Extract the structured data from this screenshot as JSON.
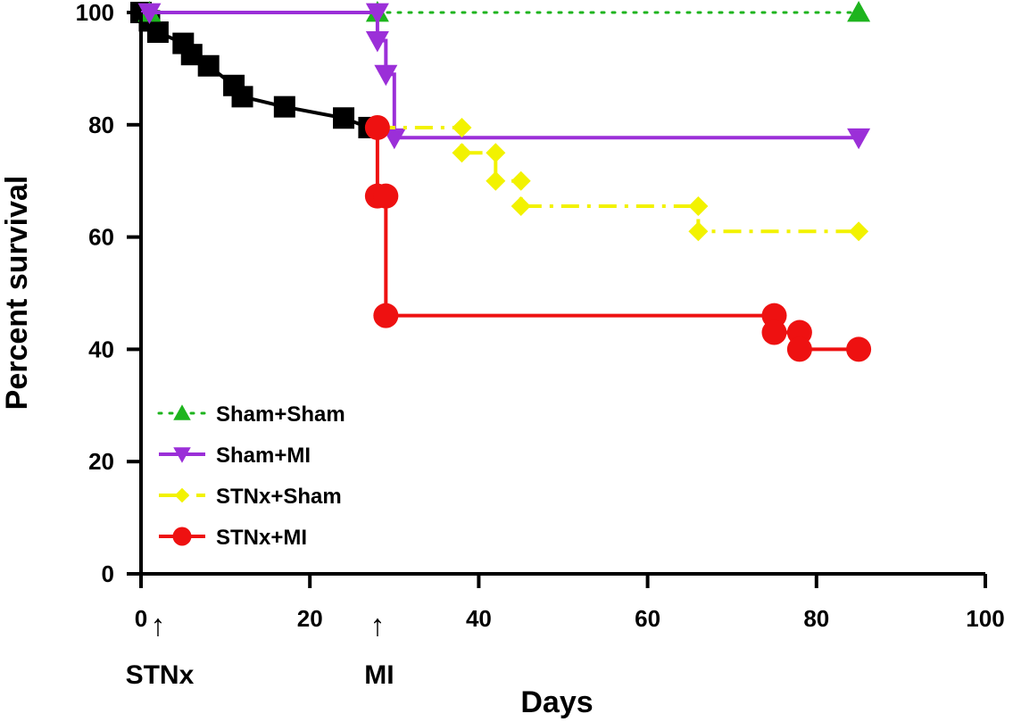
{
  "chart_data": {
    "type": "line",
    "xlabel": "Days",
    "ylabel": "Percent survival",
    "xlim": [
      0,
      100
    ],
    "ylim": [
      0,
      100
    ],
    "xticks": [
      0,
      20,
      40,
      60,
      80,
      100
    ],
    "yticks": [
      0,
      20,
      40,
      60,
      80,
      100
    ],
    "grid": false,
    "legend_position": "lower-left",
    "annotations": [
      {
        "text": "STNx",
        "arrow": "↑",
        "x": 2
      },
      {
        "text": "MI",
        "arrow": "↑",
        "x": 28
      }
    ],
    "series": [
      {
        "name": "",
        "color": "#000000",
        "marker": "square",
        "line": "solid",
        "points": [
          [
            0,
            100
          ],
          [
            1,
            98.5
          ],
          [
            2,
            96.5
          ],
          [
            5,
            94.5
          ],
          [
            6,
            92.5
          ],
          [
            8,
            90.5
          ],
          [
            11,
            87
          ],
          [
            12,
            85
          ],
          [
            17,
            83.2
          ],
          [
            24,
            81.2
          ],
          [
            27,
            79.5
          ]
        ],
        "step_path": [
          [
            0,
            100
          ],
          [
            1,
            98.5
          ],
          [
            2,
            96.5
          ],
          [
            5,
            94.5
          ],
          [
            6,
            92.5
          ],
          [
            8,
            90.5
          ],
          [
            11,
            87
          ],
          [
            12,
            85
          ],
          [
            17,
            83.2
          ],
          [
            24,
            81.2
          ],
          [
            27,
            79.5
          ],
          [
            28,
            79.5
          ]
        ]
      },
      {
        "name": "Sham+Sham",
        "color": "#1EB41E",
        "marker": "triangle-up",
        "line": "dotted",
        "points": [
          [
            1,
            100
          ],
          [
            28,
            100
          ],
          [
            85,
            100
          ]
        ],
        "step_path": [
          [
            0,
            100
          ],
          [
            85,
            100
          ]
        ]
      },
      {
        "name": "Sham+MI",
        "color": "#9B2FD8",
        "marker": "triangle-down",
        "line": "solid",
        "points": [
          [
            1,
            100
          ],
          [
            28,
            100
          ],
          [
            28,
            95
          ],
          [
            29,
            89
          ],
          [
            30,
            77.7
          ],
          [
            85,
            77.7
          ]
        ],
        "step_path": [
          [
            0,
            100
          ],
          [
            28,
            100
          ],
          [
            28,
            95
          ],
          [
            29,
            95
          ],
          [
            29,
            89
          ],
          [
            30,
            89
          ],
          [
            30,
            77.7
          ],
          [
            85,
            77.7
          ]
        ]
      },
      {
        "name": "STNx+Sham",
        "color": "#F2F200",
        "marker": "diamond",
        "line": "dash-dot",
        "points": [
          [
            38,
            79.5
          ],
          [
            38,
            75
          ],
          [
            42,
            75
          ],
          [
            42,
            70
          ],
          [
            45,
            70
          ],
          [
            45,
            65.5
          ],
          [
            66,
            65.5
          ],
          [
            66,
            61
          ],
          [
            85,
            61
          ]
        ],
        "step_path": [
          [
            28,
            79.5
          ],
          [
            38,
            79.5
          ],
          [
            38,
            75
          ],
          [
            42,
            75
          ],
          [
            42,
            70
          ],
          [
            45,
            70
          ],
          [
            45,
            65.5
          ],
          [
            66,
            65.5
          ],
          [
            66,
            61
          ],
          [
            85,
            61
          ]
        ]
      },
      {
        "name": "STNx+MI",
        "color": "#EE1111",
        "marker": "circle",
        "line": "solid",
        "points": [
          [
            28,
            79.5
          ],
          [
            28,
            67.3
          ],
          [
            29,
            67.3
          ],
          [
            29,
            46
          ],
          [
            75,
            46
          ],
          [
            75,
            43
          ],
          [
            78,
            43
          ],
          [
            78,
            40
          ],
          [
            85,
            40
          ]
        ],
        "step_path": [
          [
            28,
            79.5
          ],
          [
            28,
            67.3
          ],
          [
            29,
            67.3
          ],
          [
            29,
            46
          ],
          [
            75,
            46
          ],
          [
            75,
            43
          ],
          [
            78,
            43
          ],
          [
            78,
            40
          ],
          [
            85,
            40
          ]
        ]
      }
    ],
    "legend": [
      {
        "label": "Sham+Sham",
        "color": "#1EB41E",
        "marker": "triangle-up",
        "line": "dotted"
      },
      {
        "label": "Sham+MI",
        "color": "#9B2FD8",
        "marker": "triangle-down",
        "line": "solid"
      },
      {
        "label": "STNx+Sham",
        "color": "#F2F200",
        "marker": "diamond",
        "line": "dash-dot"
      },
      {
        "label": "STNx+MI",
        "color": "#EE1111",
        "marker": "circle",
        "line": "solid"
      }
    ]
  }
}
